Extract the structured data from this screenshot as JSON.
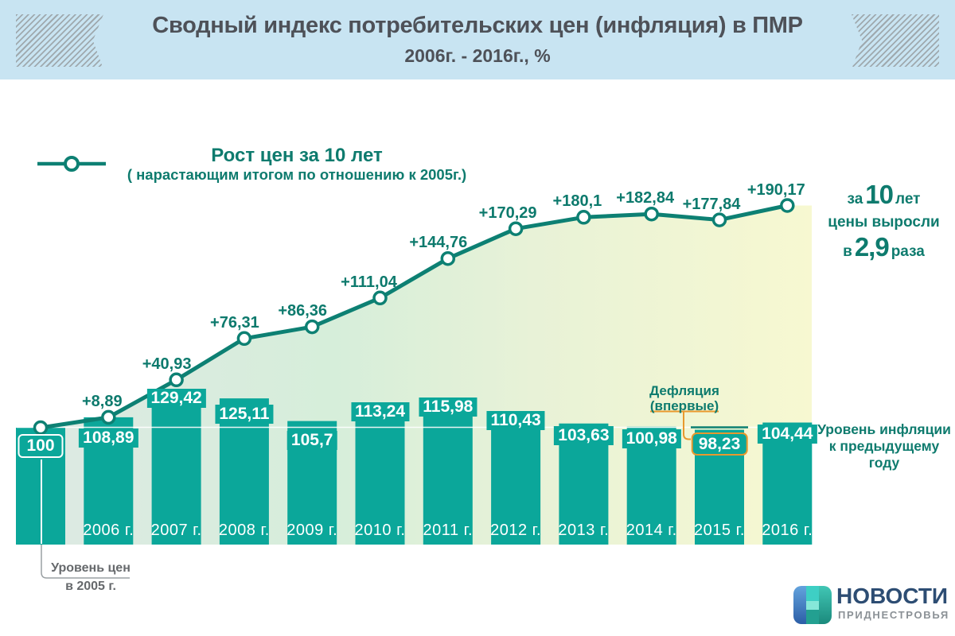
{
  "header": {
    "title": "Сводный индекс потребительских цен (инфляция) в ПМР",
    "subtitle": "2006г. - 2016г., %"
  },
  "legend": {
    "title": "Рост цен за 10 лет",
    "subtitle": "( нарастающим итогом по отношению к 2005г.)"
  },
  "chart_data": {
    "type": "combo-bar-line",
    "categories": [
      "2005",
      "2006",
      "2007",
      "2008",
      "2009",
      "2010",
      "2011",
      "2012",
      "2013",
      "2014",
      "2015",
      "2016"
    ],
    "bar_series": {
      "name": "Уровень инфляции к предыдущему году",
      "values": [
        100,
        108.89,
        129.42,
        125.11,
        105.7,
        113.24,
        115.98,
        110.43,
        103.63,
        100.98,
        98.23,
        104.44
      ],
      "labels": [
        "100",
        "108,89",
        "129,42",
        "125,11",
        "105,7",
        "113,24",
        "115,98",
        "110,43",
        "103,63",
        "100,98",
        "98,23",
        "104,44"
      ],
      "year_labels": [
        "",
        "2006 г.",
        "2007 г.",
        "2008 г.",
        "2009 г.",
        "2010 г.",
        "2011 г.",
        "2012 г.",
        "2013 г.",
        "2014 г.",
        "2015 г.",
        "2016 г."
      ]
    },
    "line_series": {
      "name": "Рост цен за 10 лет (нарастающим итогом по отношению к 2005г.)",
      "values": [
        100,
        108.89,
        140.93,
        176.31,
        186.36,
        211.04,
        244.76,
        270.29,
        280.1,
        282.84,
        277.84,
        290.17
      ],
      "labels": [
        "",
        "+8,89",
        "+40,93",
        "+76,31",
        "+86,36",
        "+111,04",
        "+144,76",
        "+170,29",
        "+180,1",
        "+182,84",
        "+177,84",
        "+190,17"
      ]
    },
    "baseline_value": 100,
    "ylim": [
      0,
      300
    ],
    "grid": false,
    "legend_position": "top-left"
  },
  "annotations": {
    "growth_note": {
      "w1": "за",
      "n1": "10",
      "w2": "лет",
      "line2": "цены выросли",
      "w3": "в",
      "n3": "2,9",
      "w4": "раза"
    },
    "bars_note": {
      "line1": "Уровень инфляции",
      "line2": "к предыдущему году"
    },
    "deflation_note": {
      "line1": "Дефляция",
      "line2": "(впервые)"
    },
    "base_note": {
      "line1": "Уровень цен",
      "line2": "в 2005 г."
    }
  },
  "logo": {
    "title": "НОВОСТИ",
    "subtitle": "ПРИДНЕСТРОВЬЯ"
  },
  "colors": {
    "bar": "#0ba79a",
    "line": "#0d8073",
    "label_text": "#0e7b6e",
    "header_bg": "#c8e4f2",
    "header_text": "#4e5158",
    "area_gradient": [
      "#dde9e3",
      "#d6eeda",
      "#e8f2d7",
      "#f7f8d1"
    ],
    "orange": "#e8992e",
    "note_gray": "#66696c",
    "logo_blue": "#2d4d73",
    "logo_gray": "#8b9196",
    "white_level_line": "#ffffff"
  }
}
